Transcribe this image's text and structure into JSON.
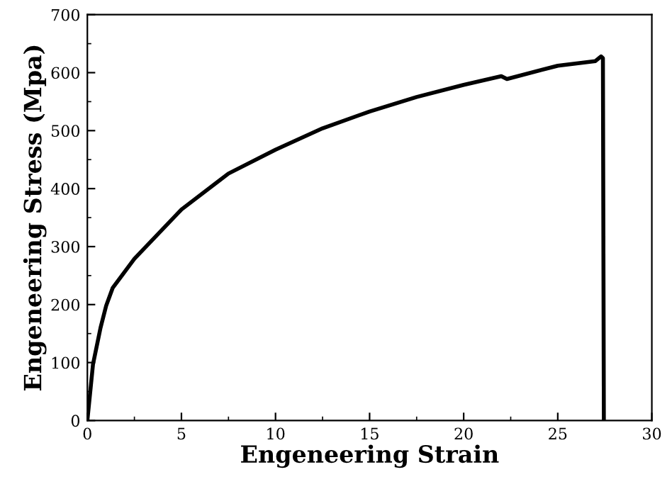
{
  "chart_data": {
    "type": "line",
    "xlabel": "Engeneering Strain",
    "ylabel": "Engeneering Stress (Mpa)",
    "x": [
      0,
      0.3,
      0.7,
      1.0,
      1.35,
      2.5,
      5,
      7.5,
      10,
      12.5,
      15,
      17.5,
      20,
      22,
      22.3,
      25,
      27,
      27.3,
      27.4,
      27.45
    ],
    "series": [
      {
        "color": "#000000",
        "values": [
          0,
          97,
          160,
          198,
          229,
          279,
          364,
          426,
          467,
          504,
          533,
          558,
          579,
          594,
          589,
          612,
          620,
          628,
          625,
          0
        ]
      }
    ],
    "xlim": [
      0,
      30
    ],
    "ylim": [
      0,
      700
    ],
    "xticks": [
      0,
      5,
      10,
      15,
      20,
      25,
      30
    ],
    "yticks": [
      0,
      100,
      200,
      300,
      400,
      500,
      600,
      700
    ],
    "grid": false,
    "legend": false,
    "marker": "none",
    "line_style": "solid"
  }
}
